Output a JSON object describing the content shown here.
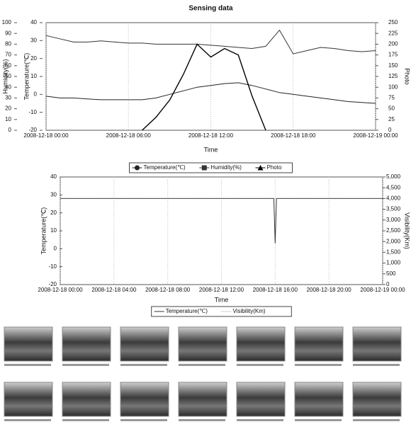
{
  "chart_data": [
    {
      "type": "line",
      "title": "Sensing data",
      "x_label": "Time",
      "y_label": "Humidity(%)",
      "y2_label": "Photo",
      "y3_label": "Temperature(℃)",
      "x": [
        0,
        1,
        2,
        3,
        4,
        5,
        6,
        7,
        8,
        9,
        10,
        11,
        12,
        13,
        14,
        15,
        16,
        17,
        18,
        19,
        20,
        21,
        22,
        23,
        24
      ],
      "xlim": [
        0,
        24
      ],
      "xticks": [
        {
          "value": 0,
          "label": "2008-12-18 00:00"
        },
        {
          "value": 6,
          "label": "2008-12-18 06:00"
        },
        {
          "value": 12,
          "label": "2008-12-18 12:00"
        },
        {
          "value": 18,
          "label": "2008-12-18 18:00"
        },
        {
          "value": 24,
          "label": "2008-12-19 00:00"
        }
      ],
      "ylim": [
        0,
        100
      ],
      "yticks": [
        0,
        10,
        20,
        30,
        40,
        50,
        60,
        70,
        80,
        90,
        100
      ],
      "y2lim": [
        0,
        250
      ],
      "y2ticks": [
        0,
        25,
        50,
        75,
        100,
        125,
        150,
        175,
        200,
        225,
        250
      ],
      "y3lim": [
        -20,
        40
      ],
      "y3ticks": [
        -20,
        -10,
        0,
        10,
        20,
        30,
        40
      ],
      "series": [
        {
          "name": "Temperature(℃)",
          "color": "#222222",
          "axis": "y3",
          "marker": "circle",
          "values": [
            -1,
            -2,
            -2,
            -2.5,
            -3,
            -3,
            -3,
            -3,
            -2,
            0,
            2,
            4,
            5,
            6,
            6.5,
            5,
            3,
            1,
            0,
            -1,
            -2,
            -3,
            -4,
            -4.5,
            -5
          ]
        },
        {
          "name": "Humidity(%)",
          "color": "#333333",
          "axis": "y",
          "marker": "square",
          "values": [
            88,
            85,
            82,
            82,
            83,
            82,
            81,
            81,
            80,
            80,
            80,
            80,
            79,
            78,
            77,
            76,
            78,
            93,
            71,
            74,
            77,
            76,
            74,
            73,
            74
          ]
        },
        {
          "name": "Photo",
          "color": "#000000",
          "axis": "y2",
          "marker": "triangle",
          "values": [
            null,
            null,
            null,
            null,
            null,
            null,
            null,
            0,
            30,
            70,
            130,
            200,
            170,
            190,
            175,
            80,
            0,
            null,
            null,
            null,
            null,
            null,
            null,
            null,
            null
          ]
        }
      ]
    },
    {
      "type": "line",
      "x_label": "Time",
      "y_label": "Temperature(℃)",
      "y2_label": "Visibility(Km)",
      "x": [
        0,
        2,
        4,
        6,
        8,
        10,
        12,
        14,
        15.9,
        16,
        16.1,
        18,
        20,
        22,
        24
      ],
      "xlim": [
        0,
        24
      ],
      "xticks": [
        {
          "value": 0,
          "label": "2008-12-18 00:00"
        },
        {
          "value": 4,
          "label": "2008-12-18 04:00"
        },
        {
          "value": 8,
          "label": "2008-12-18 08:00"
        },
        {
          "value": 12,
          "label": "2008-12-18 12:00"
        },
        {
          "value": 16,
          "label": "2008-12-18 16:00"
        },
        {
          "value": 20,
          "label": "2008-12-18 20:00"
        },
        {
          "value": 24,
          "label": "2008-12-19 00:00"
        }
      ],
      "ylim": [
        -20,
        40
      ],
      "yticks": [
        -20,
        -10,
        0,
        10,
        20,
        30,
        40
      ],
      "y2lim": [
        0,
        5000
      ],
      "y2ticks": [
        0,
        500,
        {
          "value": 1000,
          "label": "1,000"
        },
        {
          "value": 1500,
          "label": "1,500"
        },
        {
          "value": 2000,
          "label": "2,000"
        },
        {
          "value": 2500,
          "label": "2,500"
        },
        {
          "value": 3000,
          "label": "3,000"
        },
        {
          "value": 3500,
          "label": "3,500"
        },
        {
          "value": 4000,
          "label": "4,000"
        },
        {
          "value": 4500,
          "label": "4,500"
        },
        {
          "value": 5000,
          "label": "5,000"
        }
      ],
      "series": [
        {
          "name": "Temperature(℃)",
          "color": "#333333",
          "axis": "y",
          "dash": "solid",
          "values": [
            28,
            28,
            28,
            28,
            28,
            28,
            28,
            28,
            28,
            3,
            28,
            28,
            28,
            28,
            28
          ]
        },
        {
          "name": "Visibility(Km)",
          "color": "#777777",
          "axis": "y2",
          "dash": "dotted",
          "values": [
            4000,
            4000,
            4000,
            4000,
            4000,
            4000,
            4000,
            4000,
            4000,
            4000,
            4000,
            4000,
            4000,
            4000,
            4000
          ]
        }
      ]
    }
  ]
}
